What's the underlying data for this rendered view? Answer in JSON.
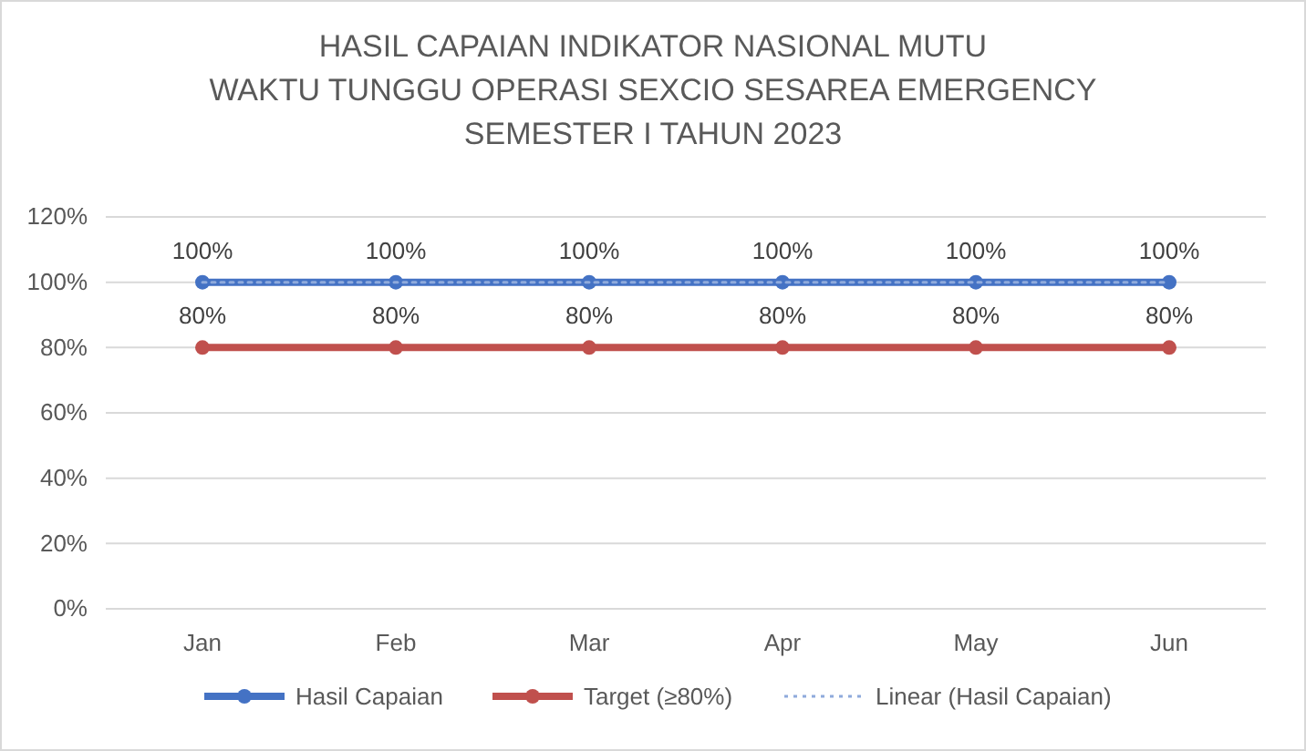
{
  "chart_data": {
    "type": "line",
    "title": "HASIL CAPAIAN INDIKATOR NASIONAL MUTU\nWAKTU TUNGGU OPERASI SEXCIO SESAREA EMERGENCY\nSEMESTER I TAHUN 2023",
    "categories": [
      "Jan",
      "Feb",
      "Mar",
      "Apr",
      "May",
      "Jun"
    ],
    "series": [
      {
        "name": "Hasil Capaian",
        "color": "#4472c4",
        "values": [
          100,
          100,
          100,
          100,
          100,
          100
        ],
        "value_labels": [
          "100%",
          "100%",
          "100%",
          "100%",
          "100%",
          "100%"
        ]
      },
      {
        "name": "Target (≥80%)",
        "color": "#c0504d",
        "values": [
          80,
          80,
          80,
          80,
          80,
          80
        ],
        "value_labels": [
          "80%",
          "80%",
          "80%",
          "80%",
          "80%",
          "80%"
        ]
      },
      {
        "name": "Linear (Hasil Capaian)",
        "color": "#8faadc",
        "values": [
          100,
          100,
          100,
          100,
          100,
          100
        ],
        "marker": "none",
        "line_style": "dotted"
      }
    ],
    "ylim": [
      0,
      120
    ],
    "yticks": [
      {
        "value": 0,
        "label": "0%"
      },
      {
        "value": 20,
        "label": "20%"
      },
      {
        "value": 40,
        "label": "40%"
      },
      {
        "value": 60,
        "label": "60%"
      },
      {
        "value": 80,
        "label": "80%"
      },
      {
        "value": 100,
        "label": "100%"
      },
      {
        "value": 120,
        "label": "120%"
      }
    ],
    "grid": "y",
    "legend": "bottom",
    "marker": "circle",
    "line_style": "solid"
  }
}
